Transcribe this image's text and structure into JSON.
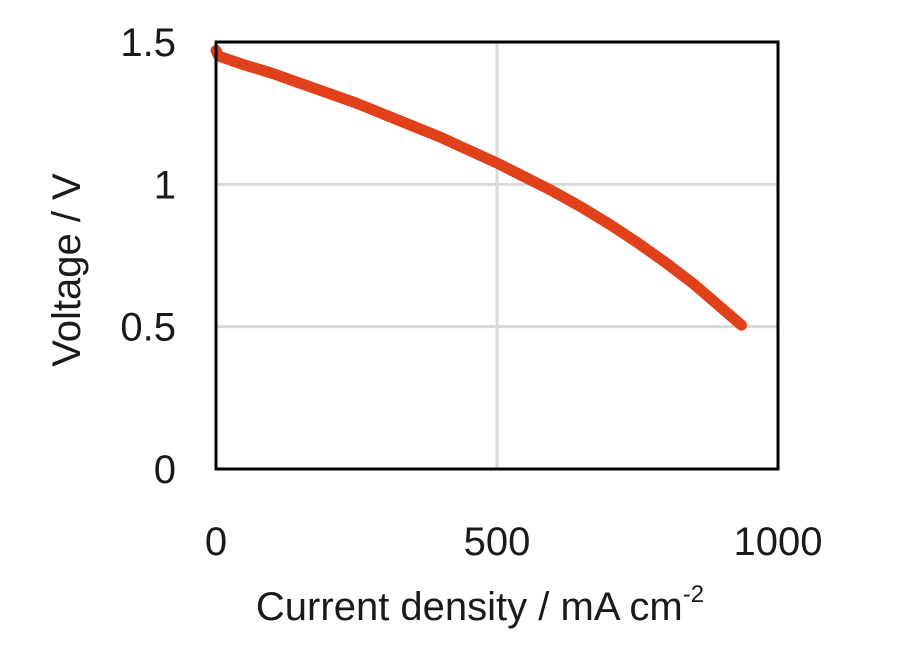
{
  "chart_data": {
    "type": "line",
    "xlabel": "Current density / mA cm",
    "xlabel_superscript": "-2",
    "ylabel": "Voltage / V",
    "xlim": [
      0,
      1000
    ],
    "ylim": [
      0,
      1.5
    ],
    "x_ticks": [
      0,
      500,
      1000
    ],
    "x_tick_labels": [
      "0",
      "500",
      "1000"
    ],
    "y_ticks": [
      0,
      0.5,
      1,
      1.5
    ],
    "y_tick_labels": [
      "0",
      "0.5",
      "1",
      "1.5"
    ],
    "grid": true,
    "colors": {
      "series": "#e0401a",
      "grid": "#d9d9d9",
      "frame": "#000000"
    },
    "series": [
      {
        "x": [
          0,
          5,
          50,
          100,
          150,
          200,
          250,
          300,
          350,
          400,
          450,
          500,
          550,
          600,
          650,
          700,
          750,
          800,
          850,
          900,
          935
        ],
        "y": [
          1.47,
          1.45,
          1.42,
          1.39,
          1.355,
          1.32,
          1.285,
          1.245,
          1.205,
          1.165,
          1.12,
          1.075,
          1.025,
          0.975,
          0.92,
          0.86,
          0.795,
          0.725,
          0.65,
          0.565,
          0.505
        ]
      }
    ]
  }
}
